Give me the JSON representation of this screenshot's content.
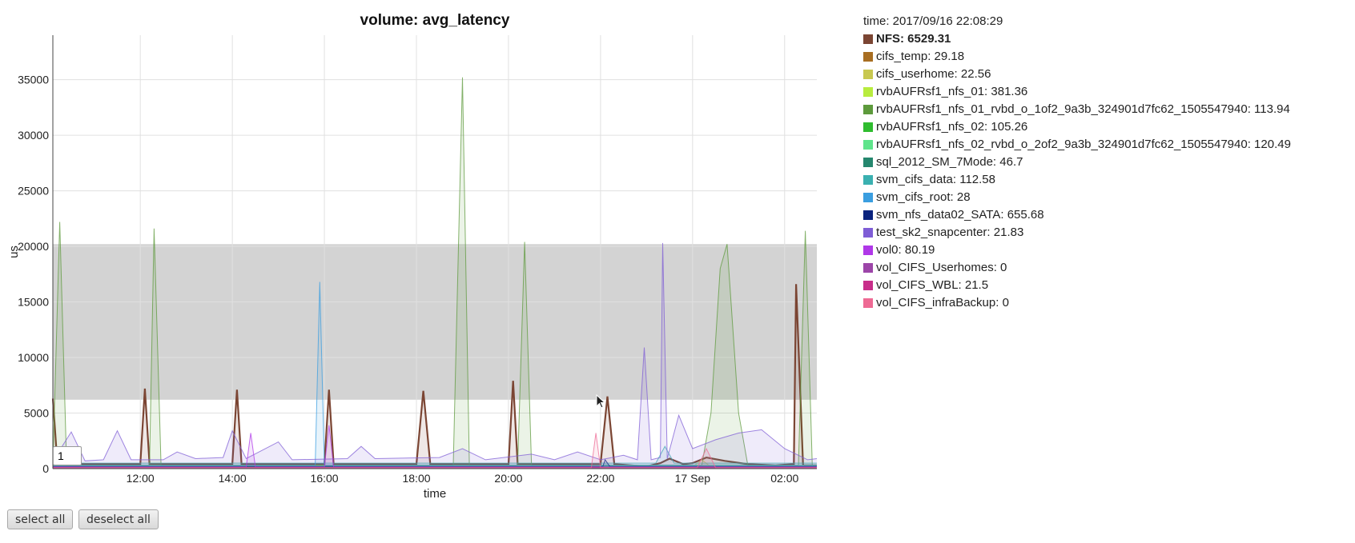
{
  "chart_data": {
    "type": "area",
    "title": "volume: avg_latency",
    "xlabel": "time",
    "ylabel": "us",
    "ylim": [
      0,
      39000
    ],
    "yticks": [
      0,
      5000,
      10000,
      15000,
      20000,
      25000,
      30000,
      35000
    ],
    "xrange_hours": [
      10.1,
      26.7
    ],
    "xticks": [
      {
        "t": 12,
        "label": "12:00"
      },
      {
        "t": 14,
        "label": "14:00"
      },
      {
        "t": 16,
        "label": "16:00"
      },
      {
        "t": 18,
        "label": "18:00"
      },
      {
        "t": 20,
        "label": "20:00"
      },
      {
        "t": 22,
        "label": "22:00"
      },
      {
        "t": 24,
        "label": "17 Sep"
      },
      {
        "t": 26,
        "label": "02:00"
      }
    ],
    "grid": true,
    "shaded_band": [
      6200,
      20200
    ],
    "roller_period": "1",
    "series": [
      {
        "name": "NFS",
        "color": "#7b4533",
        "points": [
          [
            10.1,
            6300
          ],
          [
            10.2,
            400
          ],
          [
            12.0,
            400
          ],
          [
            12.1,
            7200
          ],
          [
            12.2,
            400
          ],
          [
            14.0,
            400
          ],
          [
            14.1,
            7100
          ],
          [
            14.2,
            400
          ],
          [
            16.0,
            400
          ],
          [
            16.1,
            7100
          ],
          [
            16.2,
            400
          ],
          [
            18.0,
            400
          ],
          [
            18.15,
            7000
          ],
          [
            18.3,
            400
          ],
          [
            20.0,
            400
          ],
          [
            20.1,
            7900
          ],
          [
            20.2,
            400
          ],
          [
            22.0,
            400
          ],
          [
            22.15,
            6500
          ],
          [
            22.3,
            400
          ],
          [
            23.0,
            200
          ],
          [
            23.3,
            500
          ],
          [
            23.5,
            900
          ],
          [
            23.8,
            400
          ],
          [
            24.0,
            500
          ],
          [
            24.3,
            1000
          ],
          [
            24.7,
            700
          ],
          [
            25.2,
            400
          ],
          [
            25.8,
            300
          ],
          [
            26.2,
            400
          ],
          [
            26.25,
            16600
          ],
          [
            26.4,
            300
          ],
          [
            26.7,
            300
          ]
        ]
      },
      {
        "name": "cifs_temp",
        "color": "#a86e22",
        "points": [
          [
            10.1,
            200
          ],
          [
            26.7,
            200
          ]
        ]
      },
      {
        "name": "cifs_userhome",
        "color": "#c8c850",
        "points": [
          [
            10.1,
            150
          ],
          [
            24.0,
            150
          ],
          [
            24.2,
            800
          ],
          [
            24.4,
            150
          ],
          [
            26.7,
            150
          ]
        ]
      },
      {
        "name": "rvbAUFRsf1_nfs_01",
        "color": "#b8ec3e",
        "points": [
          [
            10.1,
            300
          ],
          [
            26.7,
            300
          ]
        ]
      },
      {
        "name": "rvbAUFRsf1_nfs_01_rvbd_o_1of2_9a3b_324901d7fc62_1505547940",
        "color": "#5d9a3c",
        "points": [
          [
            10.1,
            300
          ],
          [
            10.25,
            22200
          ],
          [
            10.4,
            300
          ],
          [
            12.2,
            300
          ],
          [
            12.3,
            21600
          ],
          [
            12.45,
            300
          ],
          [
            18.8,
            300
          ],
          [
            19.0,
            35200
          ],
          [
            19.15,
            300
          ],
          [
            20.2,
            300
          ],
          [
            20.35,
            20400
          ],
          [
            20.5,
            300
          ],
          [
            24.2,
            300
          ],
          [
            24.4,
            5000
          ],
          [
            24.6,
            18000
          ],
          [
            24.75,
            20200
          ],
          [
            25.0,
            5000
          ],
          [
            25.2,
            300
          ],
          [
            26.3,
            300
          ],
          [
            26.45,
            21400
          ],
          [
            26.6,
            300
          ],
          [
            26.7,
            300
          ]
        ]
      },
      {
        "name": "rvbAUFRsf1_nfs_02",
        "color": "#2fbc2f",
        "points": [
          [
            10.1,
            200
          ],
          [
            26.7,
            200
          ]
        ]
      },
      {
        "name": "rvbAUFRsf1_nfs_02_rvbd_o_2of2_9a3b_324901d7fc62_1505547940",
        "color": "#5fe48b",
        "points": [
          [
            10.1,
            250
          ],
          [
            26.7,
            250
          ]
        ]
      },
      {
        "name": "sql_2012_SM_7Mode",
        "color": "#25876e",
        "points": [
          [
            10.1,
            180
          ],
          [
            26.7,
            180
          ]
        ]
      },
      {
        "name": "svm_cifs_data",
        "color": "#3ab0b0",
        "points": [
          [
            10.1,
            500
          ],
          [
            23.2,
            500
          ],
          [
            23.4,
            2000
          ],
          [
            23.6,
            500
          ],
          [
            26.7,
            500
          ]
        ]
      },
      {
        "name": "svm_cifs_root",
        "color": "#3a9ee0",
        "points": [
          [
            10.1,
            300
          ],
          [
            15.8,
            300
          ],
          [
            15.9,
            16800
          ],
          [
            16.0,
            300
          ],
          [
            26.7,
            300
          ]
        ]
      },
      {
        "name": "svm_nfs_data02_SATA",
        "color": "#0a237e",
        "points": [
          [
            10.1,
            200
          ],
          [
            22.05,
            200
          ],
          [
            22.1,
            800
          ],
          [
            22.2,
            200
          ],
          [
            26.7,
            200
          ]
        ]
      },
      {
        "name": "test_sk2_snapcenter",
        "color": "#7f5dd6",
        "points": [
          [
            10.1,
            700
          ],
          [
            10.5,
            3300
          ],
          [
            10.8,
            700
          ],
          [
            11.2,
            800
          ],
          [
            11.5,
            3400
          ],
          [
            11.8,
            800
          ],
          [
            12.5,
            800
          ],
          [
            12.8,
            1500
          ],
          [
            13.2,
            900
          ],
          [
            13.8,
            1000
          ],
          [
            14.0,
            3400
          ],
          [
            14.3,
            900
          ],
          [
            15.0,
            2400
          ],
          [
            15.3,
            800
          ],
          [
            16.5,
            900
          ],
          [
            16.8,
            2000
          ],
          [
            17.1,
            900
          ],
          [
            18.5,
            1000
          ],
          [
            19.0,
            1800
          ],
          [
            19.5,
            800
          ],
          [
            20.5,
            1300
          ],
          [
            21.0,
            800
          ],
          [
            21.5,
            1500
          ],
          [
            22.0,
            800
          ],
          [
            22.5,
            1200
          ],
          [
            22.8,
            800
          ],
          [
            22.95,
            10900
          ],
          [
            23.1,
            800
          ],
          [
            23.3,
            1000
          ],
          [
            23.35,
            20300
          ],
          [
            23.45,
            900
          ],
          [
            23.7,
            4800
          ],
          [
            24.0,
            1800
          ],
          [
            24.5,
            2600
          ],
          [
            25.0,
            3200
          ],
          [
            25.5,
            3500
          ],
          [
            26.0,
            1800
          ],
          [
            26.3,
            1200
          ],
          [
            26.5,
            800
          ],
          [
            26.7,
            900
          ]
        ]
      },
      {
        "name": "vol0",
        "color": "#b038e8",
        "points": [
          [
            10.1,
            150
          ],
          [
            14.3,
            150
          ],
          [
            14.4,
            3200
          ],
          [
            14.5,
            150
          ],
          [
            16.0,
            150
          ],
          [
            16.1,
            3900
          ],
          [
            16.2,
            150
          ],
          [
            26.7,
            150
          ]
        ]
      },
      {
        "name": "vol_CIFS_Userhomes",
        "color": "#9c45a8",
        "points": [
          [
            10.1,
            80
          ],
          [
            26.7,
            80
          ]
        ]
      },
      {
        "name": "vol_CIFS_WBL",
        "color": "#c82e8a",
        "points": [
          [
            10.1,
            100
          ],
          [
            26.7,
            100
          ]
        ]
      },
      {
        "name": "vol_CIFS_infraBackup",
        "color": "#ee6a94",
        "points": [
          [
            10.1,
            80
          ],
          [
            21.8,
            80
          ],
          [
            21.9,
            3200
          ],
          [
            22.0,
            80
          ],
          [
            24.1,
            80
          ],
          [
            24.3,
            1800
          ],
          [
            24.5,
            80
          ],
          [
            26.7,
            80
          ]
        ]
      }
    ]
  },
  "legend": {
    "time_label": "time: 2017/09/16 22:08:29",
    "highlighted": 0,
    "items": [
      {
        "text": "NFS: 6529.31",
        "color": "#7b4533"
      },
      {
        "text": "cifs_temp: 29.18",
        "color": "#a86e22"
      },
      {
        "text": "cifs_userhome: 22.56",
        "color": "#c8c850"
      },
      {
        "text": "rvbAUFRsf1_nfs_01: 381.36",
        "color": "#b8ec3e"
      },
      {
        "text": "rvbAUFRsf1_nfs_01_rvbd_o_1of2_9a3b_324901d7fc62_1505547940: 113.94",
        "color": "#5d9a3c"
      },
      {
        "text": "rvbAUFRsf1_nfs_02: 105.26",
        "color": "#2fbc2f"
      },
      {
        "text": "rvbAUFRsf1_nfs_02_rvbd_o_2of2_9a3b_324901d7fc62_1505547940: 120.49",
        "color": "#5fe48b"
      },
      {
        "text": "sql_2012_SM_7Mode: 46.7",
        "color": "#25876e"
      },
      {
        "text": "svm_cifs_data: 112.58",
        "color": "#3ab0b0"
      },
      {
        "text": "svm_cifs_root: 28",
        "color": "#3a9ee0"
      },
      {
        "text": "svm_nfs_data02_SATA: 655.68",
        "color": "#0a237e"
      },
      {
        "text": "test_sk2_snapcenter: 21.83",
        "color": "#7f5dd6"
      },
      {
        "text": "vol0: 80.19",
        "color": "#b038e8"
      },
      {
        "text": "vol_CIFS_Userhomes: 0",
        "color": "#9c45a8"
      },
      {
        "text": "vol_CIFS_WBL: 21.5",
        "color": "#c82e8a"
      },
      {
        "text": "vol_CIFS_infraBackup: 0",
        "color": "#ee6a94"
      }
    ]
  },
  "buttons": {
    "select_all": "select all",
    "deselect_all": "deselect all"
  }
}
